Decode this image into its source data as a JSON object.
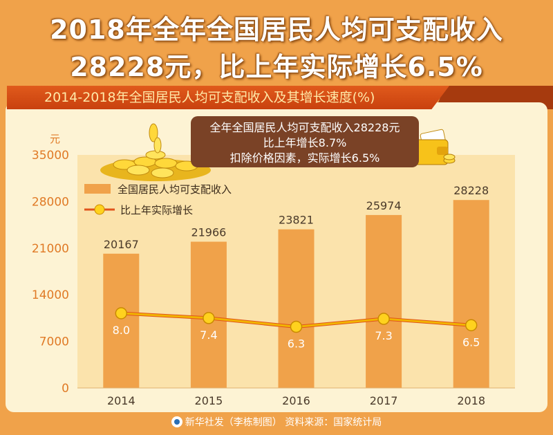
{
  "headline": {
    "line1": "2018年全年全国居民人均可支配收入",
    "line2": "28228元，比上年实际增长6.5%"
  },
  "subtitle": "2014-2018年全国居民人均可支配收入及其增长速度(%)",
  "callout": {
    "line1": "全年全国居民人均可支配收入28228元",
    "line2": "比上年增长8.7%",
    "line3": "扣除价格因素，实际增长6.5%"
  },
  "footer": "新华社发（李栋制图）  资料来源：国家统计局",
  "colors": {
    "background": "#f0a24a",
    "panel": "#fdf3d4",
    "plot_area": "#fbe3ac",
    "bar": "#f0a24a",
    "line": "#f2b400",
    "marker": "#ffd21e",
    "axis_text": "#e07a26"
  },
  "chart_data": {
    "type": "bar",
    "categories": [
      "2014",
      "2015",
      "2016",
      "2017",
      "2018"
    ],
    "ylabel": "元",
    "ylim": [
      0,
      35000
    ],
    "yticks": [
      0,
      7000,
      14000,
      21000,
      28000,
      35000
    ],
    "legend_position": "top-left",
    "grid": false,
    "series": [
      {
        "name": "全国居民人均可支配收入",
        "type": "bar",
        "values": [
          20167,
          21966,
          23821,
          25974,
          28228
        ]
      },
      {
        "name": "比上年实际增长",
        "type": "line",
        "values": [
          8.0,
          7.4,
          6.3,
          7.3,
          6.5
        ]
      }
    ]
  }
}
